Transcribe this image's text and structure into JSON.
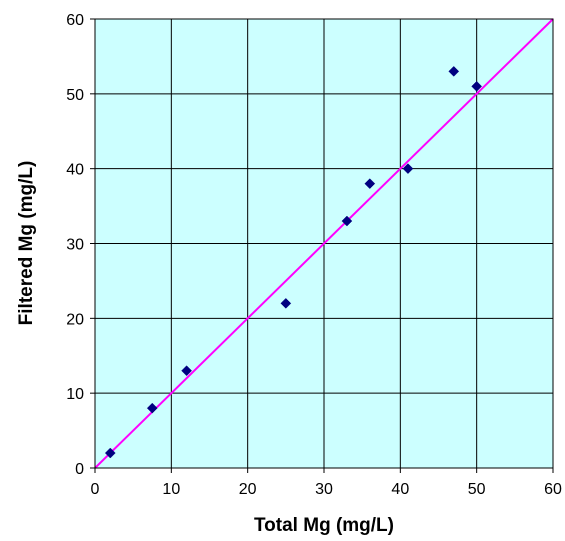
{
  "chart_data": {
    "type": "scatter",
    "xlabel": "Total Mg (mg/L)",
    "ylabel": "Filtered Mg (mg/L)",
    "xlim": [
      0,
      60
    ],
    "ylim": [
      0,
      60
    ],
    "x_ticks": [
      0,
      10,
      20,
      30,
      40,
      50,
      60
    ],
    "y_ticks": [
      0,
      10,
      20,
      30,
      40,
      50,
      60
    ],
    "grid": true,
    "legend": "none",
    "plot_background": "#ccffff",
    "marker_color": "#000080",
    "marker_shape": "diamond",
    "series": [
      {
        "points": [
          {
            "x": 2,
            "y": 2
          },
          {
            "x": 7.5,
            "y": 8
          },
          {
            "x": 12,
            "y": 13
          },
          {
            "x": 25,
            "y": 22
          },
          {
            "x": 33,
            "y": 33
          },
          {
            "x": 36,
            "y": 38
          },
          {
            "x": 41,
            "y": 40
          },
          {
            "x": 47,
            "y": 53
          },
          {
            "x": 50,
            "y": 51
          }
        ]
      }
    ],
    "reference_line": {
      "from": [
        0,
        0
      ],
      "to": [
        60,
        60
      ],
      "color": "#ff00ff"
    }
  }
}
